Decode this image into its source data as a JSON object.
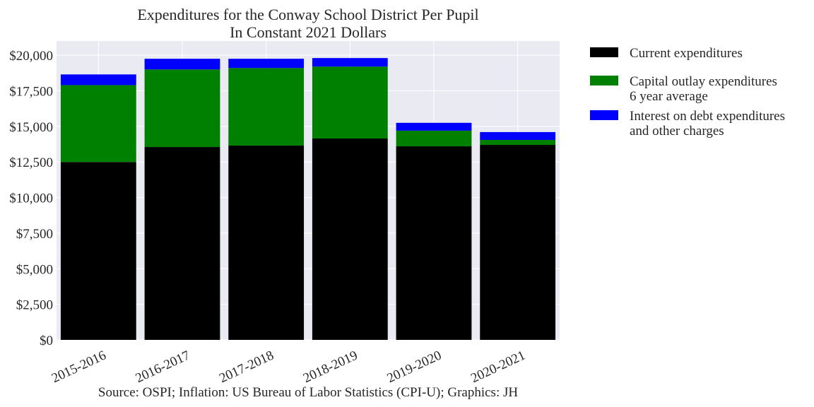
{
  "chart_data": {
    "type": "bar",
    "stacked": true,
    "title_line1": "Expenditures for the Conway School District Per Pupil",
    "title_line2": "In Constant 2021 Dollars",
    "xlabel": "",
    "ylabel": "",
    "categories": [
      "2015-2016",
      "2016-2017",
      "2017-2018",
      "2018-2019",
      "2019-2020",
      "2020-2021"
    ],
    "ylim": [
      0,
      21000
    ],
    "yticks": [
      {
        "value": 0,
        "label": "$0"
      },
      {
        "value": 2500,
        "label": "$2,500"
      },
      {
        "value": 5000,
        "label": "$5,000"
      },
      {
        "value": 7500,
        "label": "$7,500"
      },
      {
        "value": 10000,
        "label": "$10,000"
      },
      {
        "value": 12500,
        "label": "$12,500"
      },
      {
        "value": 15000,
        "label": "$15,000"
      },
      {
        "value": 17500,
        "label": "$17,500"
      },
      {
        "value": 20000,
        "label": "$20,000"
      }
    ],
    "grid": true,
    "legend_position": "outside-right",
    "series": [
      {
        "name": "Current expenditures",
        "legend_lines": [
          "Current expenditures"
        ],
        "color": "#000000",
        "values": [
          12500,
          13550,
          13650,
          14150,
          13600,
          13700
        ]
      },
      {
        "name": "Capital outlay expenditures 6 year average",
        "legend_lines": [
          "Capital outlay expenditures",
          "6 year average"
        ],
        "color": "#008000",
        "values": [
          5400,
          5450,
          5450,
          5050,
          1100,
          350
        ]
      },
      {
        "name": "Interest on debt expenditures and other charges",
        "legend_lines": [
          "Interest on debt expenditures",
          "and other charges"
        ],
        "color": "#0000ff",
        "values": [
          750,
          750,
          650,
          600,
          550,
          550
        ]
      }
    ],
    "source": "Source: OSPI; Inflation: US Bureau of Labor Statistics (CPI-U); Graphics: JH"
  },
  "colors": {
    "plot_background": "#eaeaf2",
    "grid": "#ffffff",
    "text": "#262626"
  }
}
